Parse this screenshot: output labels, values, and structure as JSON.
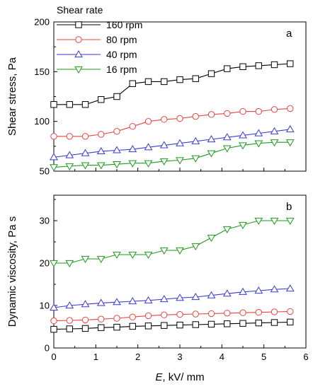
{
  "legend": {
    "title": "Shear rate",
    "placement": "top-left"
  },
  "xlabel": {
    "italic_part": "E",
    "rest": ", kV/ mm"
  },
  "chart_data": [
    {
      "type": "line",
      "panel_label": "a",
      "ylabel": "Shear stress, Pa",
      "xlim": [
        0,
        6
      ],
      "ylim": [
        50,
        200
      ],
      "xticks": [
        "0",
        "1",
        "2",
        "3",
        "4",
        "5",
        "6"
      ],
      "yticks": [
        "50",
        "100",
        "150",
        "200"
      ],
      "x": [
        0,
        0.375,
        0.75,
        1.125,
        1.5,
        1.875,
        2.25,
        2.625,
        3.0,
        3.375,
        3.75,
        4.125,
        4.5,
        4.875,
        5.25,
        5.625
      ],
      "grid": false,
      "series": [
        {
          "name": "160 rpm",
          "color": "#000000",
          "marker": "square",
          "values": [
            117,
            117,
            117,
            122,
            125,
            138,
            140,
            140,
            142,
            143,
            148,
            153,
            155,
            156,
            157,
            158
          ]
        },
        {
          "name": "80 rpm",
          "color": "#e8453c",
          "marker": "circle",
          "values": [
            85,
            85,
            85,
            87,
            90,
            95,
            100,
            102,
            103,
            105,
            107,
            108,
            110,
            110,
            112,
            113
          ]
        },
        {
          "name": "40 rpm",
          "color": "#3a3ad6",
          "marker": "triangle-up",
          "values": [
            64,
            66,
            68,
            70,
            71,
            72,
            74,
            76,
            78,
            80,
            82,
            84,
            86,
            88,
            90,
            92
          ]
        },
        {
          "name": "16 rpm",
          "color": "#1e9a1e",
          "marker": "triangle-down",
          "values": [
            54,
            55,
            56,
            56,
            57,
            58,
            58,
            60,
            61,
            63,
            68,
            73,
            76,
            78,
            79,
            79
          ]
        }
      ]
    },
    {
      "type": "line",
      "panel_label": "b",
      "ylabel": "Dynamic viscosity, Pa s",
      "xlim": [
        0,
        6
      ],
      "ylim": [
        0,
        36
      ],
      "xticks": [
        "0",
        "1",
        "2",
        "3",
        "4",
        "5",
        "6"
      ],
      "yticks": [
        "0",
        "10",
        "20",
        "30"
      ],
      "x": [
        0,
        0.375,
        0.75,
        1.125,
        1.5,
        1.875,
        2.25,
        2.625,
        3.0,
        3.375,
        3.75,
        4.125,
        4.5,
        4.875,
        5.25,
        5.625
      ],
      "grid": false,
      "series": [
        {
          "name": "16 rpm",
          "color": "#1e9a1e",
          "marker": "triangle-down",
          "values": [
            20,
            20,
            21,
            21,
            22,
            22,
            22,
            23,
            23,
            24,
            26,
            28,
            29,
            30,
            30,
            30
          ]
        },
        {
          "name": "40 rpm",
          "color": "#3a3ad6",
          "marker": "triangle-up",
          "values": [
            9.5,
            10,
            10.3,
            10.6,
            10.8,
            11,
            11.2,
            11.5,
            11.8,
            12,
            12.4,
            12.8,
            13.2,
            13.5,
            13.8,
            14
          ]
        },
        {
          "name": "80 rpm",
          "color": "#e8453c",
          "marker": "circle",
          "values": [
            6.4,
            6.5,
            6.6,
            6.8,
            7,
            7.3,
            7.6,
            7.8,
            7.9,
            8,
            8.1,
            8.2,
            8.3,
            8.4,
            8.5,
            8.6
          ]
        },
        {
          "name": "160 rpm",
          "color": "#000000",
          "marker": "square",
          "values": [
            4.4,
            4.5,
            4.6,
            4.8,
            4.9,
            5.1,
            5.2,
            5.3,
            5.4,
            5.5,
            5.6,
            5.7,
            5.8,
            5.9,
            6.0,
            6.1
          ]
        }
      ]
    }
  ]
}
